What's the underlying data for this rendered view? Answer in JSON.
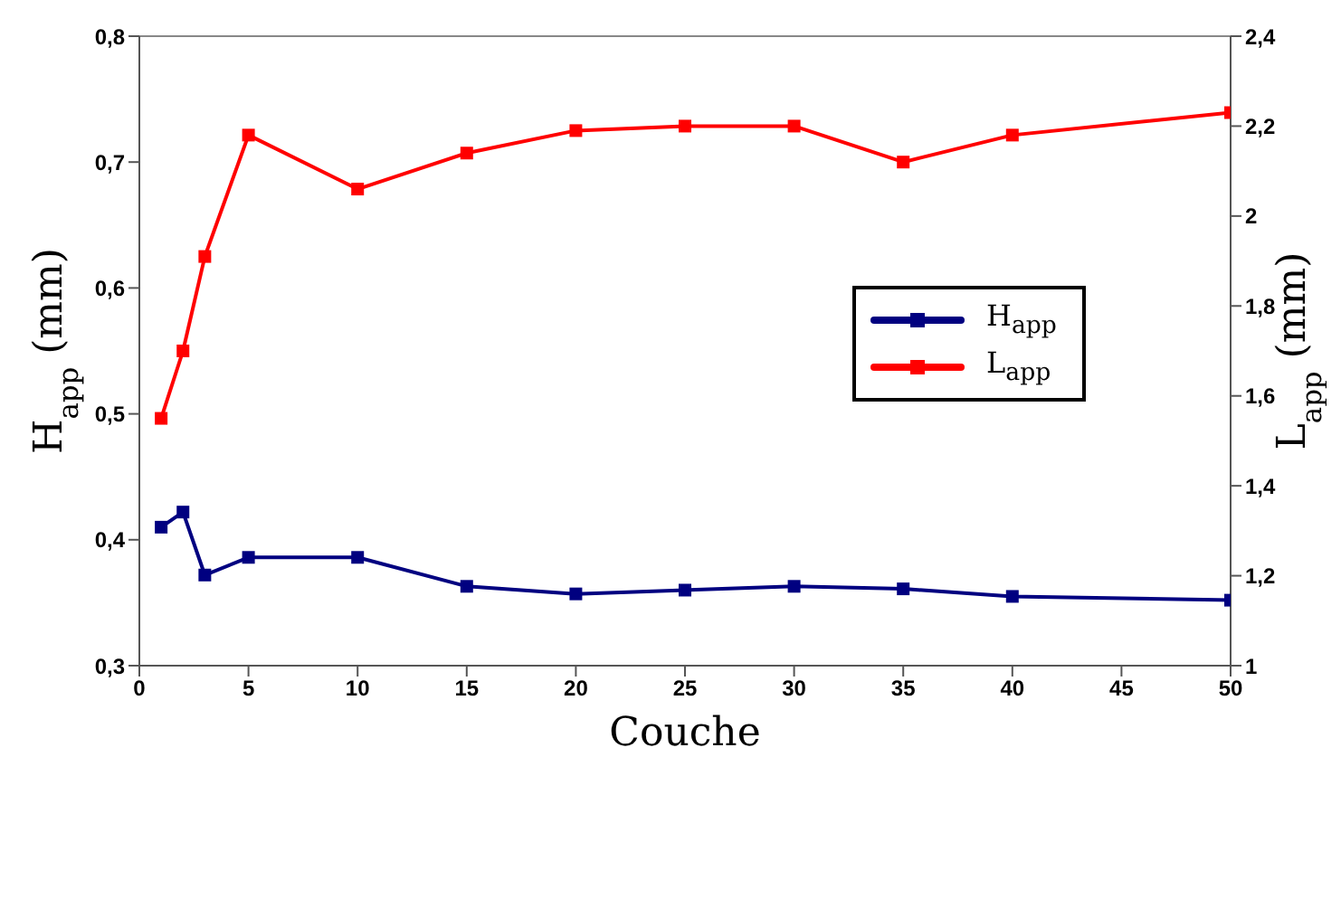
{
  "chart_data": {
    "type": "line",
    "xlabel": "Couche",
    "ylabel": "H$_{app}$ (mm)",
    "y2label": "L$_{app}$ (mm)",
    "x": [
      1,
      2,
      3,
      5,
      10,
      15,
      20,
      25,
      30,
      35,
      40,
      50
    ],
    "series": [
      {
        "name": "H$_{app}$",
        "color": "#000080",
        "values": [
          0.41,
          0.422,
          0.372,
          0.386,
          0.386,
          0.363,
          0.357,
          0.36,
          0.363,
          0.361,
          0.355,
          0.352
        ]
      },
      {
        "name": "L$_{app}$",
        "color": "#ff0000",
        "axis": "y2",
        "values": [
          1.55,
          1.7,
          1.91,
          2.18,
          2.06,
          2.14,
          2.19,
          2.2,
          2.2,
          2.12,
          2.18,
          2.23
        ]
      }
    ],
    "xlim": [
      0,
      50
    ],
    "xticks": [
      0,
      5,
      10,
      15,
      20,
      25,
      30,
      35,
      40,
      45,
      50
    ],
    "ylim": [
      0.3,
      0.8
    ],
    "yticks": [
      {
        "value": 0.3,
        "label": "0,3"
      },
      {
        "value": 0.4,
        "label": "0,4"
      },
      {
        "value": 0.5,
        "label": "0,5"
      },
      {
        "value": 0.6,
        "label": "0,6"
      },
      {
        "value": 0.7,
        "label": "0,7"
      },
      {
        "value": 0.8,
        "label": "0,8"
      }
    ],
    "y2lim": [
      1,
      2.4
    ],
    "y2ticks": [
      1,
      {
        "value": 1.2,
        "label": "1,2"
      },
      {
        "value": 1.4,
        "label": "1,4"
      },
      {
        "value": 1.6,
        "label": "1,6"
      },
      {
        "value": 1.8,
        "label": "1,8"
      },
      2,
      {
        "value": 2.2,
        "label": "2,2"
      },
      {
        "value": 2.4,
        "label": "2,4"
      }
    ],
    "grid": false,
    "legend": "right",
    "marker": "square",
    "line_style": "solid"
  }
}
